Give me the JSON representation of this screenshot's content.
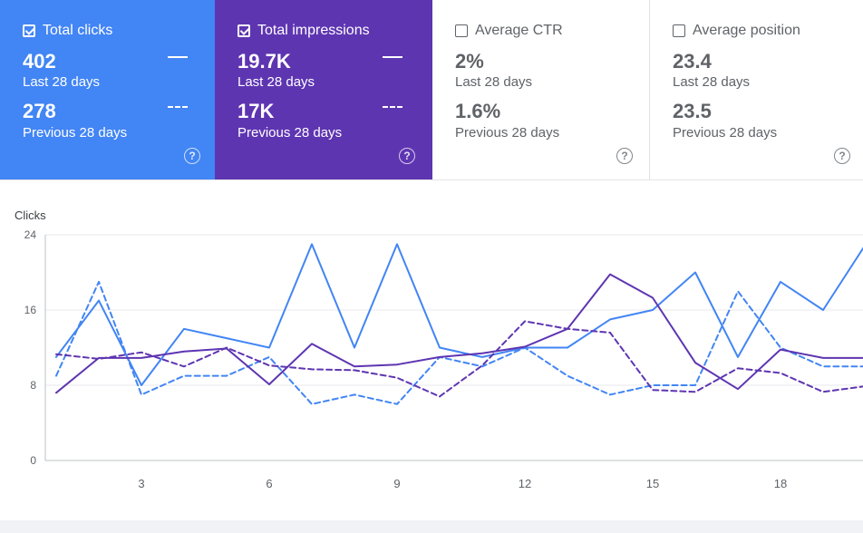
{
  "cards": [
    {
      "title": "Total clicks",
      "checked": true,
      "current_value": "402",
      "current_label": "Last 28 days",
      "previous_value": "278",
      "previous_label": "Previous 28 days",
      "help": "?"
    },
    {
      "title": "Total impressions",
      "checked": true,
      "current_value": "19.7K",
      "current_label": "Last 28 days",
      "previous_value": "17K",
      "previous_label": "Previous 28 days",
      "help": "?"
    },
    {
      "title": "Average CTR",
      "checked": false,
      "current_value": "2%",
      "current_label": "Last 28 days",
      "previous_value": "1.6%",
      "previous_label": "Previous 28 days",
      "help": "?"
    },
    {
      "title": "Average position",
      "checked": false,
      "current_value": "23.4",
      "current_label": "Last 28 days",
      "previous_value": "23.5",
      "previous_label": "Previous 28 days",
      "help": "?"
    }
  ],
  "colors": {
    "clicks": "#4285f4",
    "impressions": "#5e35b1",
    "card_inactive_text": "#5f6368"
  },
  "chart_data": {
    "type": "line",
    "ylabel": "Clicks",
    "ylim": [
      0,
      24
    ],
    "yticks": [
      0,
      8,
      16,
      24
    ],
    "xticks": [
      3,
      6,
      9,
      12,
      15,
      18
    ],
    "x": [
      1,
      2,
      3,
      4,
      5,
      6,
      7,
      8,
      9,
      10,
      11,
      12,
      13,
      14,
      15,
      16,
      17,
      18,
      19,
      20
    ],
    "series": [
      {
        "name": "Total clicks (last 28 days)",
        "style": "solid",
        "color": "#4285f4",
        "values": [
          11,
          17,
          8,
          14,
          13,
          12,
          23,
          12,
          23,
          12,
          11,
          12,
          12,
          15,
          16,
          20,
          11,
          19,
          16,
          23
        ]
      },
      {
        "name": "Total clicks (previous 28 days)",
        "style": "dashed",
        "color": "#4285f4",
        "values": [
          9,
          19,
          7,
          9,
          9,
          11,
          6,
          7,
          6,
          11,
          10,
          12,
          9,
          7,
          8,
          8,
          18,
          12,
          10,
          10
        ]
      },
      {
        "name": "Total impressions (last 28 days)",
        "style": "solid",
        "color": "#5e35b1",
        "values": [
          7.2,
          10.9,
          10.9,
          11.6,
          11.9,
          8.1,
          12.4,
          10,
          10.2,
          11,
          11.4,
          12.1,
          14,
          19.8,
          17.3,
          10.4,
          7.6,
          11.8,
          10.9,
          10.9
        ]
      },
      {
        "name": "Total impressions (previous 28 days)",
        "style": "dashed",
        "color": "#5e35b1",
        "values": [
          11.3,
          10.8,
          11.5,
          10,
          12,
          10.1,
          9.7,
          9.6,
          8.8,
          6.8,
          10.1,
          14.8,
          14,
          13.6,
          7.5,
          7.3,
          9.8,
          9.3,
          7.3,
          7.9
        ]
      }
    ]
  }
}
